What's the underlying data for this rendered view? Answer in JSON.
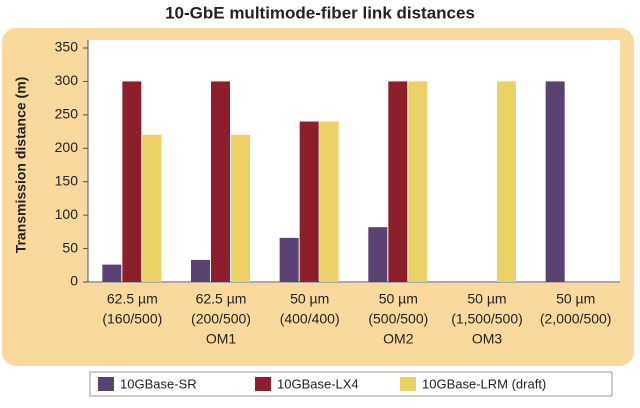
{
  "chart_data": {
    "type": "bar",
    "title": "10-GbE multimode-fiber link distances",
    "y_label": "Transmission distance (m)",
    "categories": [
      [
        "62.5 µm",
        "(160/500)"
      ],
      [
        "62.5 µm",
        "(200/500)",
        "OM1"
      ],
      [
        "50 µm",
        "(400/400)"
      ],
      [
        "50 µm",
        "(500/500)",
        "OM2"
      ],
      [
        "50 µm",
        "(1,500/500)",
        "OM3"
      ],
      [
        "50 µm",
        "(2,000/500)"
      ]
    ],
    "series": [
      {
        "name": "10GBase-SR",
        "color": "#5a4272",
        "values": [
          26,
          33,
          66,
          82,
          null,
          300
        ]
      },
      {
        "name": "10GBase-LX4",
        "color": "#8c1f2b",
        "values": [
          300,
          300,
          240,
          300,
          null,
          null
        ]
      },
      {
        "name": "10GBase-LRM (draft)",
        "color": "#ead065",
        "values": [
          220,
          220,
          240,
          300,
          300,
          null
        ]
      }
    ],
    "ylim": [
      0,
      350
    ],
    "yticks": [
      0,
      50,
      100,
      150,
      200,
      250,
      300,
      350
    ]
  }
}
